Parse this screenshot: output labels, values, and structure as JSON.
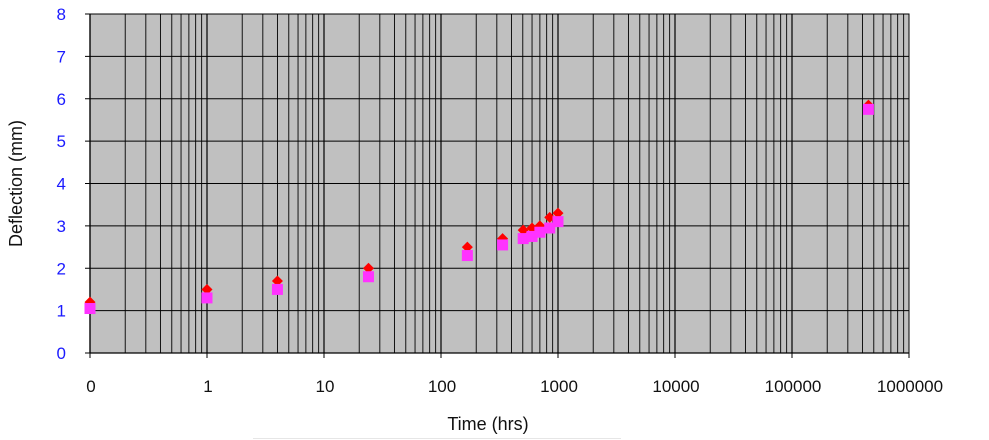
{
  "chart_data": {
    "type": "scatter",
    "xlabel": "Time (hrs)",
    "ylabel": "Deflection (mm)",
    "x_scale": "log",
    "x_tick_labels": [
      "0",
      "1",
      "10",
      "100",
      "1000",
      "10000",
      "100000",
      "1000000"
    ],
    "y_tick_labels": [
      "0",
      "1",
      "2",
      "3",
      "4",
      "5",
      "6",
      "7",
      "8"
    ],
    "ylim": [
      0,
      8
    ],
    "grid": true,
    "plot_background": "#c0c0c0",
    "series": [
      {
        "color": "#ff0000",
        "marker": "diamond",
        "points": [
          {
            "x": 0.1,
            "y": 1.2
          },
          {
            "x": 1,
            "y": 1.5
          },
          {
            "x": 4,
            "y": 1.7
          },
          {
            "x": 24,
            "y": 2.0
          },
          {
            "x": 168,
            "y": 2.5
          },
          {
            "x": 336,
            "y": 2.7
          },
          {
            "x": 504,
            "y": 2.9
          },
          {
            "x": 600,
            "y": 2.95
          },
          {
            "x": 700,
            "y": 3.0
          },
          {
            "x": 850,
            "y": 3.2
          },
          {
            "x": 1000,
            "y": 3.3
          },
          {
            "x": 450000,
            "y": 5.85
          }
        ]
      },
      {
        "color": "#ff33ff",
        "marker": "square",
        "points": [
          {
            "x": 0.1,
            "y": 1.05
          },
          {
            "x": 1,
            "y": 1.3
          },
          {
            "x": 4,
            "y": 1.5
          },
          {
            "x": 24,
            "y": 1.8
          },
          {
            "x": 168,
            "y": 2.3
          },
          {
            "x": 336,
            "y": 2.55
          },
          {
            "x": 504,
            "y": 2.7
          },
          {
            "x": 600,
            "y": 2.75
          },
          {
            "x": 700,
            "y": 2.85
          },
          {
            "x": 850,
            "y": 2.95
          },
          {
            "x": 1000,
            "y": 3.1
          },
          {
            "x": 450000,
            "y": 5.75
          }
        ]
      }
    ]
  }
}
